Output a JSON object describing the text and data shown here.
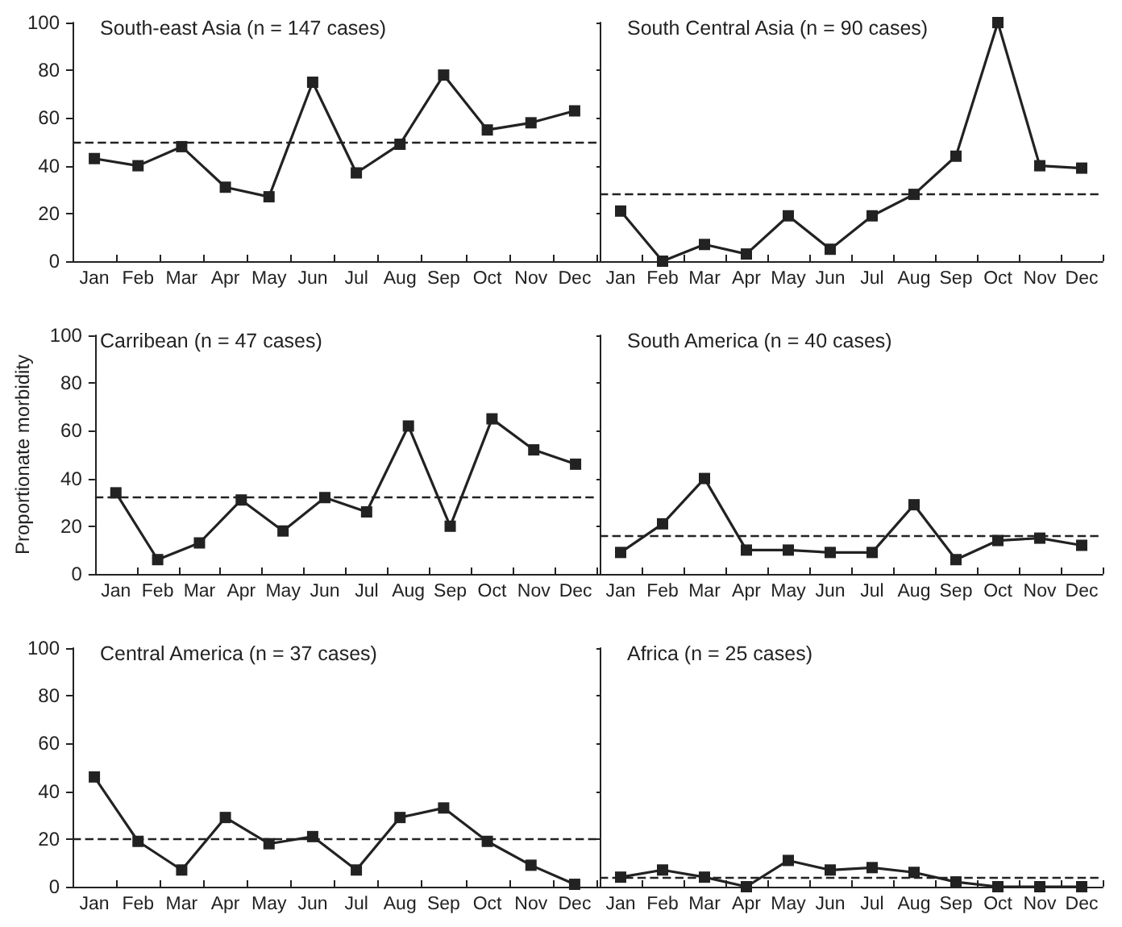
{
  "chart_data": [
    {
      "type": "line",
      "title": "South-east Asia (n = 147 cases)",
      "categories": [
        "Jan",
        "Feb",
        "Mar",
        "Apr",
        "May",
        "Jun",
        "Jul",
        "Aug",
        "Sep",
        "Oct",
        "Nov",
        "Dec"
      ],
      "values": [
        43,
        40,
        48,
        31,
        27,
        75,
        37,
        49,
        78,
        55,
        58,
        63
      ],
      "color": "#222222",
      "marker": "square",
      "line_style": "solid",
      "ylim": [
        0,
        100
      ],
      "yticks": [
        0,
        20,
        40,
        60,
        80,
        100
      ],
      "ref_lines": [
        {
          "axis": "y",
          "value": 50,
          "line_style": "dashed",
          "color": "#222222"
        }
      ]
    },
    {
      "type": "line",
      "title": "South Central Asia (n = 90 cases)",
      "categories": [
        "Jan",
        "Feb",
        "Mar",
        "Apr",
        "May",
        "Jun",
        "Jul",
        "Aug",
        "Sep",
        "Oct",
        "Nov",
        "Dec"
      ],
      "values": [
        21,
        0,
        7,
        3,
        19,
        5,
        19,
        28,
        44,
        100,
        40,
        39
      ],
      "color": "#222222",
      "marker": "square",
      "line_style": "solid",
      "ylim": [
        0,
        100
      ],
      "yticks": [
        0,
        20,
        40,
        60,
        80,
        100
      ],
      "tick_labels": "x",
      "ref_lines": [
        {
          "axis": "y",
          "value": 28,
          "line_style": "dashed",
          "color": "#222222"
        }
      ]
    },
    {
      "type": "line",
      "title": "Carribean (n = 47 cases)",
      "ylabel": "Proportionate morbidity",
      "categories": [
        "Jan",
        "Feb",
        "Mar",
        "Apr",
        "May",
        "Jun",
        "Jul",
        "Aug",
        "Sep",
        "Oct",
        "Nov",
        "Dec"
      ],
      "values": [
        34,
        6,
        13,
        31,
        18,
        32,
        26,
        62,
        20,
        65,
        52,
        46
      ],
      "color": "#222222",
      "marker": "square",
      "line_style": "solid",
      "ylim": [
        0,
        100
      ],
      "yticks": [
        0,
        20,
        40,
        60,
        80,
        100
      ],
      "ref_lines": [
        {
          "axis": "y",
          "value": 32,
          "line_style": "dashed",
          "color": "#222222"
        }
      ]
    },
    {
      "type": "line",
      "title": "South America (n = 40 cases)",
      "categories": [
        "Jan",
        "Feb",
        "Mar",
        "Apr",
        "May",
        "Jun",
        "Jul",
        "Aug",
        "Sep",
        "Oct",
        "Nov",
        "Dec"
      ],
      "values": [
        9,
        21,
        40,
        10,
        10,
        9,
        9,
        29,
        6,
        14,
        15,
        12
      ],
      "color": "#222222",
      "marker": "square",
      "line_style": "solid",
      "ylim": [
        0,
        100
      ],
      "yticks": [
        0,
        20,
        40,
        60,
        80,
        100
      ],
      "tick_labels": "x",
      "ref_lines": [
        {
          "axis": "y",
          "value": 16,
          "line_style": "dashed",
          "color": "#222222"
        }
      ]
    },
    {
      "type": "line",
      "title": "Central America (n = 37 cases)",
      "categories": [
        "Jan",
        "Feb",
        "Mar",
        "Apr",
        "May",
        "Jun",
        "Jul",
        "Aug",
        "Sep",
        "Oct",
        "Nov",
        "Dec"
      ],
      "values": [
        46,
        19,
        7,
        29,
        18,
        21,
        7,
        29,
        33,
        19,
        9,
        1
      ],
      "color": "#222222",
      "marker": "square",
      "line_style": "solid",
      "ylim": [
        0,
        100
      ],
      "yticks": [
        0,
        20,
        40,
        60,
        80,
        100
      ],
      "ref_lines": [
        {
          "axis": "y",
          "value": 20,
          "line_style": "dashed",
          "color": "#222222"
        }
      ]
    },
    {
      "type": "line",
      "title": "Africa (n = 25 cases)",
      "categories": [
        "Jan",
        "Feb",
        "Mar",
        "Apr",
        "May",
        "Jun",
        "Jul",
        "Aug",
        "Sep",
        "Oct",
        "Nov",
        "Dec"
      ],
      "values": [
        4,
        7,
        4,
        0,
        11,
        7,
        8,
        6,
        2,
        0,
        0,
        0
      ],
      "color": "#222222",
      "marker": "square",
      "line_style": "solid",
      "ylim": [
        0,
        100
      ],
      "yticks": [
        0,
        20,
        40,
        60,
        80,
        100
      ],
      "tick_labels": "x",
      "ref_lines": [
        {
          "axis": "y",
          "value": 4,
          "line_style": "dashed",
          "color": "#222222"
        }
      ]
    }
  ]
}
